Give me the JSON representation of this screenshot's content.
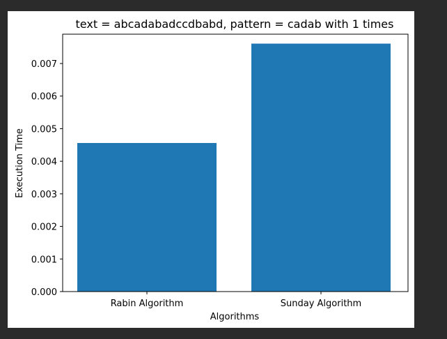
{
  "chart_data": {
    "type": "bar",
    "title": "text = abcadabadccdbabd, pattern = cadab  with 1 times",
    "xlabel": "Algorithms",
    "ylabel": "Execution Time",
    "categories": [
      "Rabin Algorithm",
      "Sunday Algorithm"
    ],
    "values": [
      0.00456,
      0.00761
    ],
    "ylim": [
      0,
      0.0079
    ],
    "yticks": [
      "0.000",
      "0.001",
      "0.002",
      "0.003",
      "0.004",
      "0.005",
      "0.006",
      "0.007"
    ],
    "ytick_values": [
      0,
      0.001,
      0.002,
      0.003,
      0.004,
      0.005,
      0.006,
      0.007
    ],
    "bar_color": "#1f77b4",
    "grid": false,
    "legend": "none"
  }
}
